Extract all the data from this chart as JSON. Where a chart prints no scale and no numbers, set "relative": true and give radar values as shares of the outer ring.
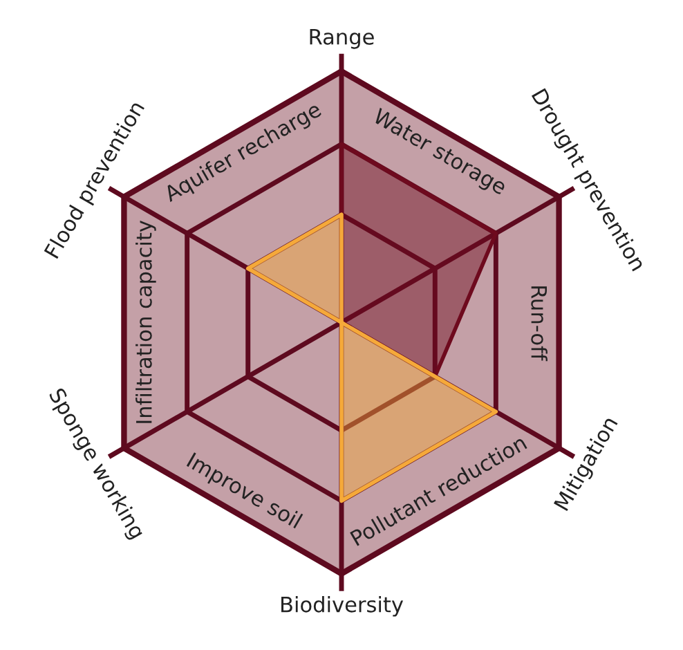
{
  "chart_data": {
    "type": "radar",
    "relative": true,
    "grid": true,
    "categories": [
      "Range",
      "Drought prevention",
      "Mitigation",
      "Biodiversity",
      "Sponge working",
      "Flood prevention"
    ],
    "series": [
      {
        "color": "#6e0a1e",
        "values": [
          0.71,
          0.71,
          0.43,
          0,
          0,
          0
        ]
      },
      {
        "color": "#f5a93a",
        "values": [
          0,
          0,
          0.71,
          0.71,
          0,
          0
        ]
      },
      {
        "color": "#f5a93a",
        "values": [
          0.43,
          0,
          0,
          0,
          0,
          0.43
        ]
      }
    ],
    "annotations": [
      "Water storage",
      "Run-off",
      "Pollutant reduction",
      "Improve soil",
      "Infiltration capacity",
      "Aquifer recharge"
    ]
  }
}
